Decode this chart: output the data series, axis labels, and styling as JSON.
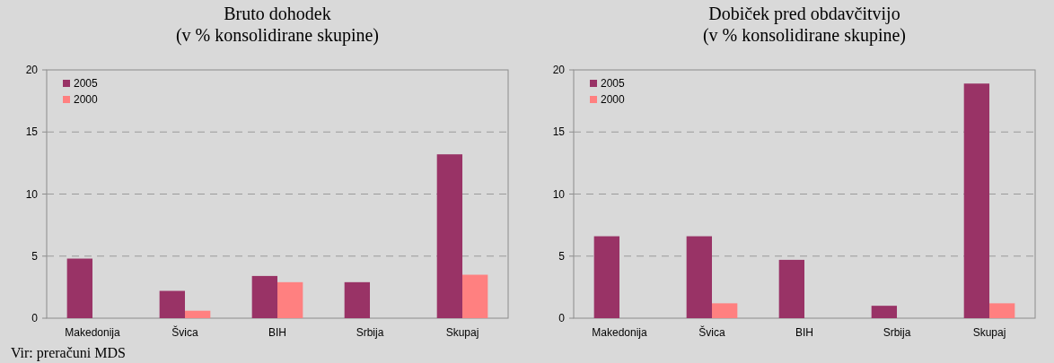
{
  "chart_data": [
    {
      "type": "bar",
      "title": "Bruto dohodek\n(v % konsolidirane skupine)",
      "categories": [
        "Makedonija",
        "Švica",
        "BIH",
        "Srbija",
        "Skupaj"
      ],
      "series": [
        {
          "name": "2005",
          "color": "#993366",
          "values": [
            4.8,
            2.2,
            3.4,
            2.9,
            13.2
          ]
        },
        {
          "name": "2000",
          "color": "#ff8080",
          "values": [
            null,
            0.6,
            2.9,
            null,
            3.5
          ]
        }
      ],
      "ylim": [
        0,
        20
      ],
      "yticks": [
        0,
        5,
        10,
        15,
        20
      ],
      "grid": "y",
      "legend": "top left",
      "annotations": [
        "Vir: preračuni MDS"
      ]
    },
    {
      "type": "bar",
      "title": "Dobiček pred obdavčitvijo\n(v % konsolidirane skupine)",
      "categories": [
        "Makedonija",
        "Švica",
        "BIH",
        "Srbija",
        "Skupaj"
      ],
      "series": [
        {
          "name": "2005",
          "color": "#993366",
          "values": [
            6.6,
            6.6,
            4.7,
            1.0,
            18.9
          ]
        },
        {
          "name": "2000",
          "color": "#ff8080",
          "values": [
            null,
            1.2,
            null,
            null,
            1.2
          ]
        }
      ],
      "ylim": [
        0,
        20
      ],
      "yticks": [
        0,
        5,
        10,
        15,
        20
      ],
      "grid": "y",
      "legend": "top left"
    }
  ]
}
